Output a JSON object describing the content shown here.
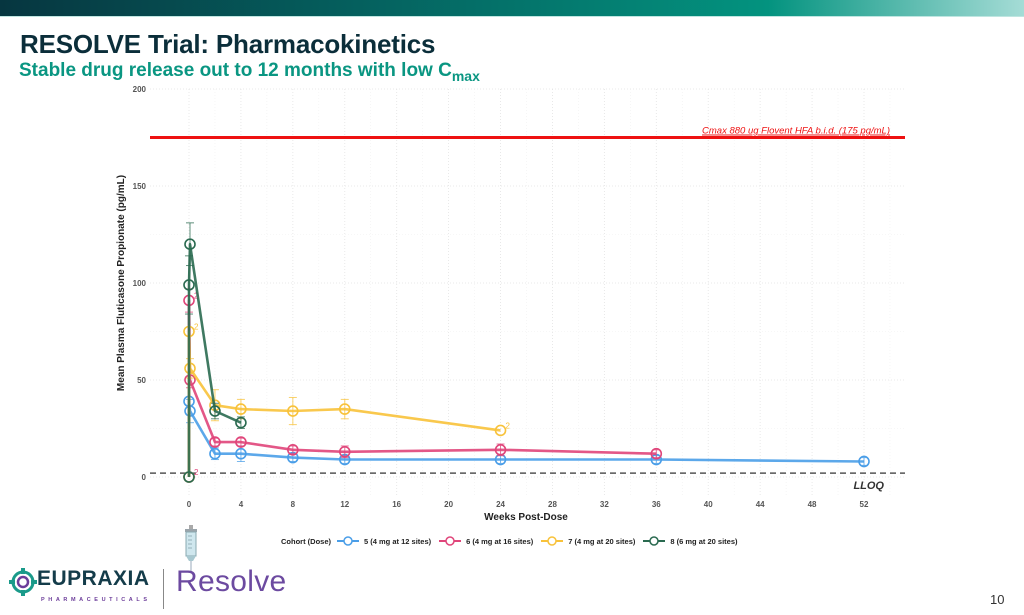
{
  "slide": {
    "title": "RESOLVE Trial: Pharmacokinetics",
    "subtitle_main": "Stable drug release out to 12 months with low C",
    "subtitle_sub": "max",
    "page_number": "10",
    "logos": {
      "company": "EUPRAXIA",
      "company_sub": "PHARMACEUTICALS",
      "product": "Resolve",
      "syringe_icon": "syringe-icon"
    },
    "colors": {
      "title": "#0b2e3a",
      "subtitle": "#0a9682",
      "reference_line": "#ee1111",
      "lloq_line": "#555555"
    }
  },
  "chart_data": {
    "type": "line",
    "xlabel": "Weeks Post-Dose",
    "ylabel": "Mean Plasma Fluticasone Propionate (pg/mL)",
    "xlim": [
      -3,
      55
    ],
    "ylim": [
      0,
      200
    ],
    "x_ticks": [
      0,
      4,
      8,
      12,
      16,
      20,
      24,
      28,
      32,
      36,
      40,
      44,
      48,
      52
    ],
    "y_ticks": [
      0,
      50,
      100,
      150,
      200
    ],
    "grid": true,
    "legend_title": "Cohort (Dose)",
    "legend_position": "bottom",
    "reference_lines": [
      {
        "name": "cmax-flovent",
        "y": 175,
        "label": "Cmax 880 ug Flovent HFA b.i.d. (175 pg/mL)",
        "color": "#ee1111",
        "style": "solid"
      },
      {
        "name": "lloq",
        "y": 2,
        "label": "LLOQ",
        "color": "#555555",
        "style": "dashed"
      }
    ],
    "series": [
      {
        "name": "5 (4 mg at 12 sites)",
        "color": "#4a9ee8",
        "points": [
          {
            "x": 0,
            "y": 0,
            "err": 0
          },
          {
            "x": 0,
            "y": 39,
            "err": 0
          },
          {
            "x": 0,
            "y": 34,
            "err": 6
          },
          {
            "x": 2,
            "y": 12,
            "err": 3
          },
          {
            "x": 4,
            "y": 12,
            "err": 4
          },
          {
            "x": 8,
            "y": 10,
            "err": 2
          },
          {
            "x": 12,
            "y": 9,
            "err": 2
          },
          {
            "x": 24,
            "y": 9,
            "err": 2
          },
          {
            "x": 36,
            "y": 9,
            "err": 2
          },
          {
            "x": 52,
            "y": 8,
            "err": 2
          }
        ]
      },
      {
        "name": "6 (4 mg at 16 sites)",
        "color": "#e0457a",
        "points": [
          {
            "x": 0,
            "y": 0,
            "err": 0,
            "note": "2"
          },
          {
            "x": 0,
            "y": 91,
            "err": 6,
            "note": "2"
          },
          {
            "x": 0,
            "y": 50,
            "err": 4
          },
          {
            "x": 2,
            "y": 18,
            "err": 2
          },
          {
            "x": 4,
            "y": 18,
            "err": 2
          },
          {
            "x": 8,
            "y": 14,
            "err": 2
          },
          {
            "x": 12,
            "y": 13,
            "err": 3
          },
          {
            "x": 24,
            "y": 14,
            "err": 3
          },
          {
            "x": 36,
            "y": 12,
            "err": 2
          }
        ]
      },
      {
        "name": "7 (4 mg at 20 sites)",
        "color": "#f8c23a",
        "points": [
          {
            "x": 0,
            "y": 0,
            "err": 0
          },
          {
            "x": 0,
            "y": 75,
            "err": 0,
            "note": "2"
          },
          {
            "x": 0,
            "y": 56,
            "err": 5
          },
          {
            "x": 2,
            "y": 37,
            "err": 8
          },
          {
            "x": 4,
            "y": 35,
            "err": 5
          },
          {
            "x": 8,
            "y": 34,
            "err": 7
          },
          {
            "x": 12,
            "y": 35,
            "err": 5
          },
          {
            "x": 24,
            "y": 24,
            "err": 0,
            "note": "2"
          }
        ]
      },
      {
        "name": "8 (6 mg at 20 sites)",
        "color": "#2a6a50",
        "points": [
          {
            "x": 0,
            "y": 0,
            "err": 0
          },
          {
            "x": 0,
            "y": 99,
            "err": 15
          },
          {
            "x": 0,
            "y": 120,
            "err": 11
          },
          {
            "x": 2,
            "y": 34,
            "err": 4
          },
          {
            "x": 4,
            "y": 28,
            "err": 3
          }
        ]
      }
    ]
  }
}
